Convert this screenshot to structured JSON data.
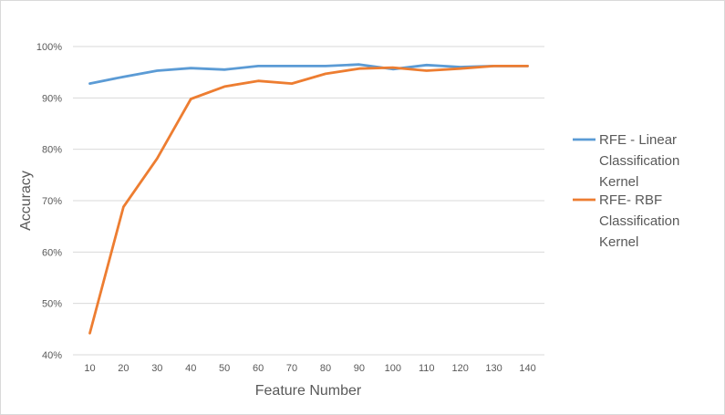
{
  "chart_data": {
    "type": "line",
    "title": "",
    "xlabel": "Feature Number",
    "ylabel": "Accuracy",
    "categories": [
      10,
      20,
      30,
      40,
      50,
      60,
      70,
      80,
      90,
      100,
      110,
      120,
      130,
      140
    ],
    "ylim": [
      40,
      100
    ],
    "yticks": [
      40,
      50,
      60,
      70,
      80,
      90,
      100
    ],
    "ytick_format": "percent",
    "grid": "horizontal",
    "legend_position": "right",
    "series": [
      {
        "name_lines": [
          "RFE - Linear",
          "Classification",
          "Kernel"
        ],
        "color": "#5b9bd5",
        "values": [
          92.8,
          94.1,
          95.3,
          95.8,
          95.5,
          96.2,
          96.2,
          96.2,
          96.5,
          95.6,
          96.4,
          96.0,
          96.2,
          96.2
        ]
      },
      {
        "name_lines": [
          "RFE- RBF",
          "Classification",
          "Kernel"
        ],
        "color": "#ed7d31",
        "values": [
          44.2,
          68.8,
          78.2,
          89.8,
          92.2,
          93.3,
          92.8,
          94.7,
          95.7,
          95.9,
          95.3,
          95.7,
          96.2,
          96.2
        ]
      }
    ]
  }
}
